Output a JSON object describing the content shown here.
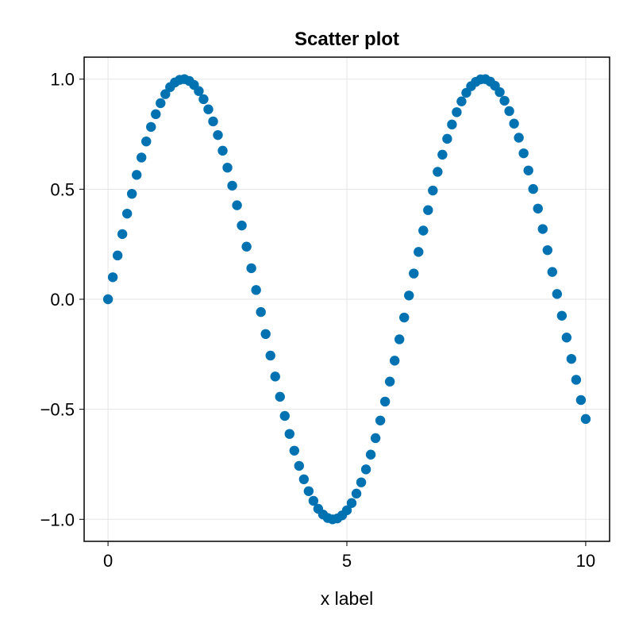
{
  "chart_data": {
    "type": "scatter",
    "title": "Scatter plot",
    "xlabel": "x label",
    "ylabel": "",
    "xlim": [
      -0.5,
      10.5
    ],
    "ylim": [
      -1.1,
      1.1
    ],
    "x_ticks": [
      {
        "value": 0,
        "label": "0"
      },
      {
        "value": 5,
        "label": "5"
      },
      {
        "value": 10,
        "label": "10"
      }
    ],
    "y_ticks": [
      {
        "value": 1.0,
        "label": "1.0"
      },
      {
        "value": 0.5,
        "label": "0.5"
      },
      {
        "value": 0.0,
        "label": "0.0"
      },
      {
        "value": -0.5,
        "label": "−0.5"
      },
      {
        "value": -1.0,
        "label": "−1.0"
      }
    ],
    "grid": true,
    "marker_color": "#0072b2",
    "series": [
      {
        "x": [
          0,
          0.1,
          0.2,
          0.3,
          0.4,
          0.5,
          0.6,
          0.7,
          0.8,
          0.9,
          1,
          1.1,
          1.2,
          1.3,
          1.4,
          1.5,
          1.6,
          1.7,
          1.8,
          1.9,
          2,
          2.1,
          2.2,
          2.3,
          2.4,
          2.5,
          2.6,
          2.7,
          2.8,
          2.9,
          3,
          3.1,
          3.2,
          3.3,
          3.4,
          3.5,
          3.6,
          3.7,
          3.8,
          3.9,
          4,
          4.1,
          4.2,
          4.3,
          4.4,
          4.5,
          4.6,
          4.7,
          4.8,
          4.9,
          5,
          5.1,
          5.2,
          5.3,
          5.4,
          5.5,
          5.6,
          5.7,
          5.8,
          5.9,
          6,
          6.1,
          6.2,
          6.3,
          6.4,
          6.5,
          6.6,
          6.7,
          6.8,
          6.9,
          7,
          7.1,
          7.2,
          7.3,
          7.4,
          7.5,
          7.6,
          7.7,
          7.8,
          7.9,
          8,
          8.1,
          8.2,
          8.3,
          8.4,
          8.5,
          8.6,
          8.7,
          8.8,
          8.9,
          9,
          9.1,
          9.2,
          9.3,
          9.4,
          9.5,
          9.6,
          9.7,
          9.8,
          9.9,
          10
        ],
        "y": [
          0,
          0.1,
          0.199,
          0.296,
          0.389,
          0.479,
          0.565,
          0.644,
          0.717,
          0.783,
          0.841,
          0.891,
          0.932,
          0.964,
          0.985,
          0.997,
          1,
          0.992,
          0.974,
          0.946,
          0.909,
          0.863,
          0.808,
          0.746,
          0.675,
          0.598,
          0.516,
          0.427,
          0.335,
          0.239,
          0.141,
          0.042,
          -0.058,
          -0.158,
          -0.256,
          -0.351,
          -0.443,
          -0.53,
          -0.612,
          -0.688,
          -0.757,
          -0.818,
          -0.872,
          -0.916,
          -0.952,
          -0.978,
          -0.994,
          -1,
          -0.996,
          -0.982,
          -0.959,
          -0.926,
          -0.883,
          -0.832,
          -0.773,
          -0.706,
          -0.631,
          -0.551,
          -0.465,
          -0.374,
          -0.279,
          -0.182,
          -0.083,
          0.017,
          0.117,
          0.215,
          0.312,
          0.405,
          0.494,
          0.579,
          0.657,
          0.729,
          0.794,
          0.85,
          0.899,
          0.938,
          0.968,
          0.988,
          0.999,
          1,
          0.989,
          0.97,
          0.941,
          0.902,
          0.855,
          0.798,
          0.734,
          0.663,
          0.585,
          0.501,
          0.412,
          0.319,
          0.223,
          0.124,
          0.024,
          -0.075,
          -0.174,
          -0.271,
          -0.366,
          -0.458,
          -0.544
        ]
      }
    ]
  }
}
